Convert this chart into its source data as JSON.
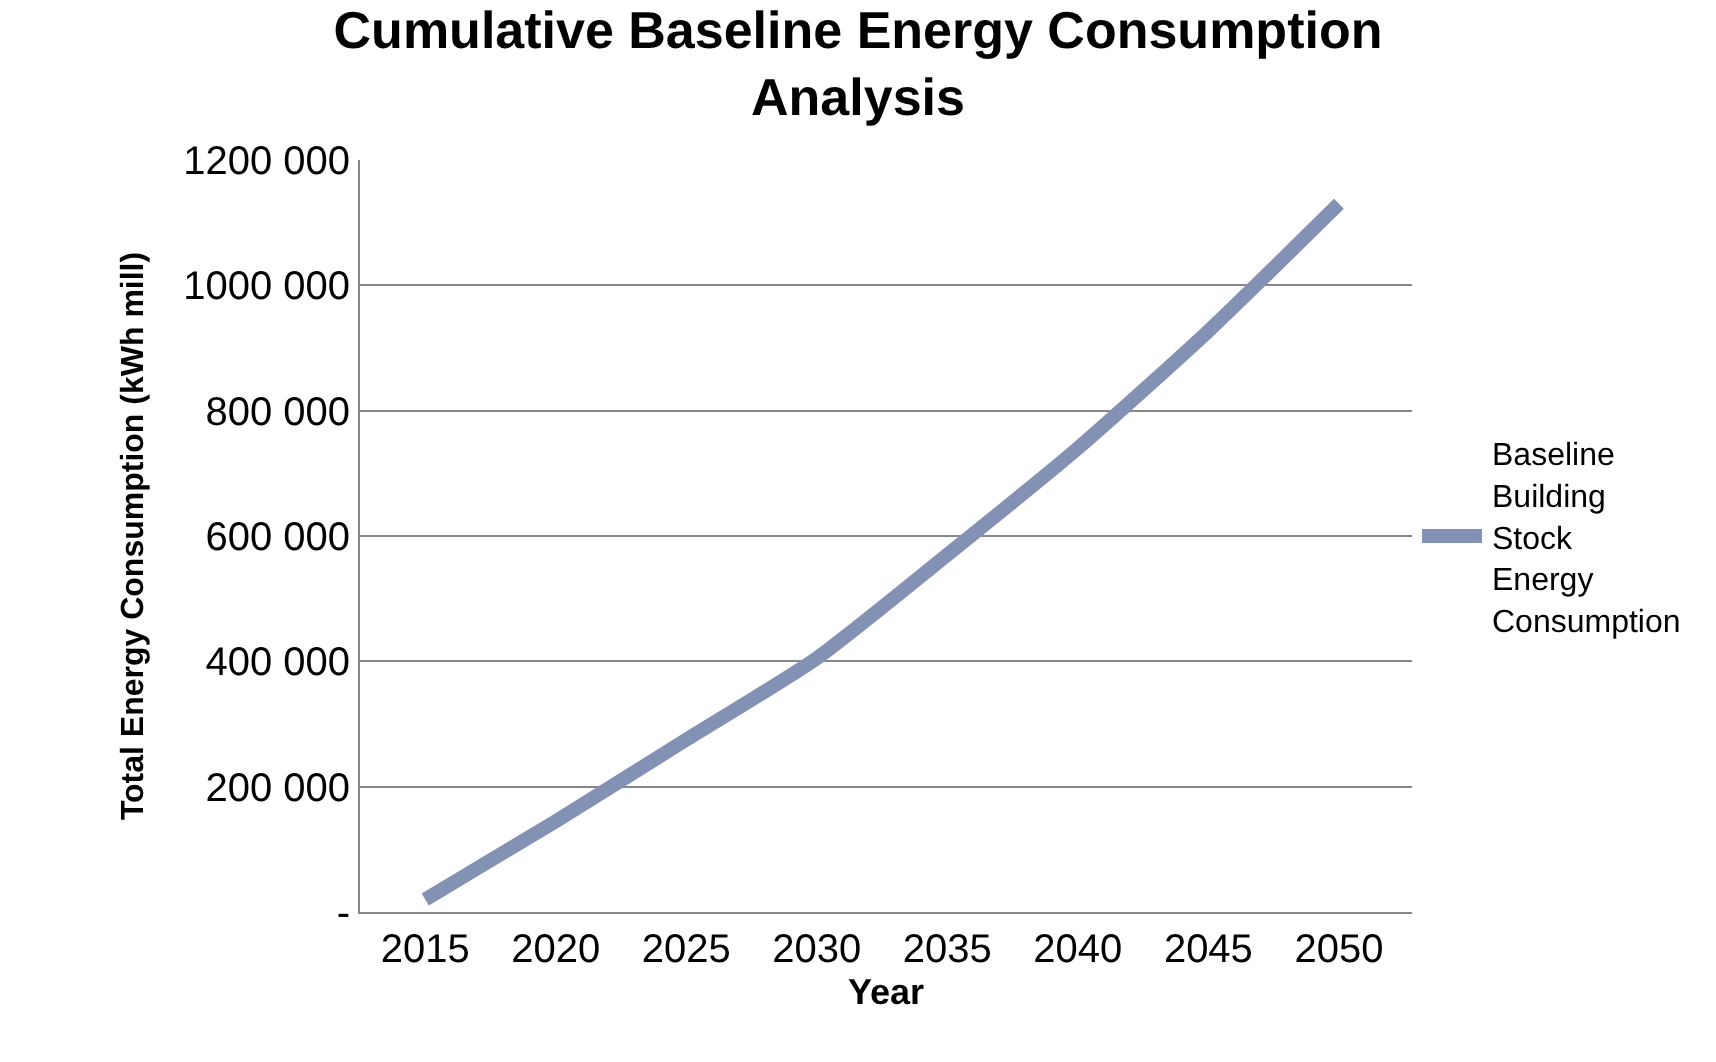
{
  "chart_data": {
    "type": "line",
    "title": "Cumulative Baseline Energy Consumption Analysis",
    "xlabel": "Year",
    "ylabel": "Total Energy Consumption (kWh mill)",
    "x": [
      2015,
      2020,
      2025,
      2030,
      2035,
      2040,
      2045,
      2050
    ],
    "series": [
      {
        "name": "Baseline Building Stock Energy Consumption",
        "color": "#8391b5",
        "values": [
          20000,
          145000,
          275000,
          405000,
          570000,
          740000,
          927000,
          1130000
        ]
      }
    ],
    "xlim": [
      2012.5,
      2052.8
    ],
    "xticks": [
      2015,
      2020,
      2025,
      2030,
      2035,
      2040,
      2045,
      2050
    ],
    "ylim": [
      0,
      1200000
    ],
    "yticks": [
      {
        "value": 0,
        "label": "-"
      },
      {
        "value": 200000,
        "label": "200 000"
      },
      {
        "value": 400000,
        "label": "400 000"
      },
      {
        "value": 600000,
        "label": "600 000"
      },
      {
        "value": 800000,
        "label": "800 000"
      },
      {
        "value": 1000000,
        "label": "1000 000"
      },
      {
        "value": 1200000,
        "label": "1200 000"
      }
    ],
    "grid": "y",
    "legend": "right",
    "marker": "none",
    "line_style": "solid"
  }
}
